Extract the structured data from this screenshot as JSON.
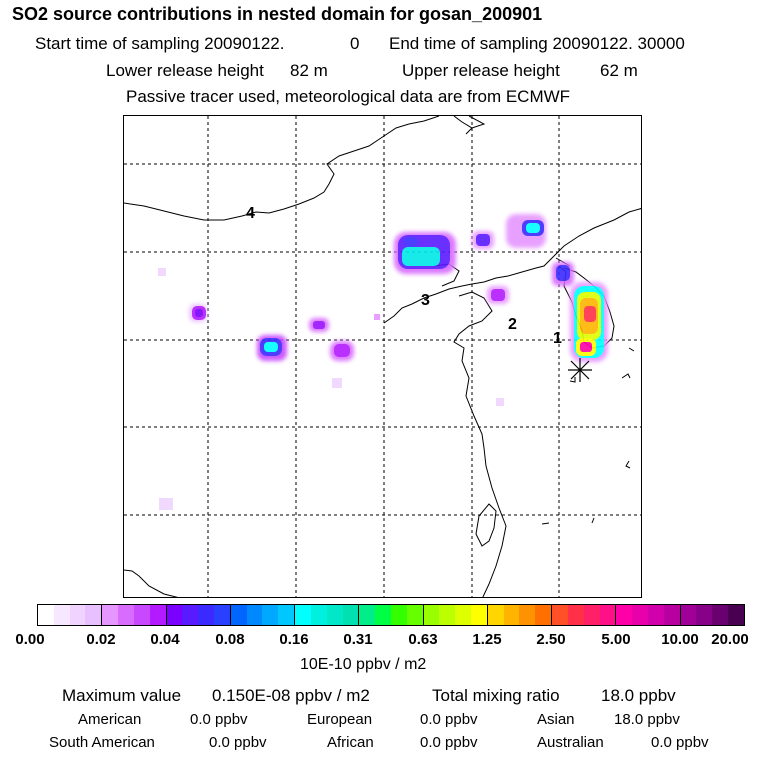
{
  "header": {
    "title": "SO2 source contributions in nested domain for gosan_200901",
    "start_label": "Start time of sampling 20090122.",
    "start_time": "0",
    "end_label": "End time of sampling 20090122. 30000",
    "lower_label": "Lower release height",
    "lower_value": "82 m",
    "upper_label": "Upper release height",
    "upper_value": "62 m",
    "info": "Passive tracer used, meteorological data are from ECMWF"
  },
  "map": {
    "markers": [
      {
        "label": "4"
      },
      {
        "label": "3"
      },
      {
        "label": "2"
      },
      {
        "label": "1"
      }
    ],
    "receptor_symbol": "star"
  },
  "legend": {
    "ticks": [
      "0.00",
      "0.02",
      "0.04",
      "0.08",
      "0.16",
      "0.31",
      "0.63",
      "1.25",
      "2.50",
      "5.00",
      "10.00",
      "20.00"
    ],
    "colors": [
      [
        "#ffffff",
        "#f8e8ff",
        "#f0d4ff",
        "#e8c0ff"
      ],
      [
        "#e596ff",
        "#d86cff",
        "#c848ff",
        "#b31aff"
      ],
      [
        "#7a00ff",
        "#5a1aff",
        "#3a2aff",
        "#2a40ff"
      ],
      [
        "#0066ff",
        "#0088ff",
        "#00a8ff",
        "#00c8ff"
      ],
      [
        "#00ffff",
        "#00f0e0",
        "#00e8c8",
        "#00e0b0"
      ],
      [
        "#00ee88",
        "#00ff44",
        "#33ff00",
        "#66ff00"
      ],
      [
        "#99ff00",
        "#bbff00",
        "#ddff00",
        "#ffff00"
      ],
      [
        "#ffd600",
        "#ffb400",
        "#ff9200",
        "#ff7000"
      ],
      [
        "#ff5028",
        "#ff3048",
        "#ff2068",
        "#ff1088"
      ],
      [
        "#ff00a8",
        "#e800aa",
        "#d000ac",
        "#b800a0"
      ],
      [
        "#a00098",
        "#860088",
        "#6a0070",
        "#4a0050"
      ]
    ],
    "units": "10E-10 ppbv / m2"
  },
  "stats": {
    "max_label": "Maximum value",
    "max_value": "0.150E-08 ppbv / m2",
    "total_label": "Total mixing ratio",
    "total_value": "18.0 ppbv"
  },
  "regions": [
    {
      "name": "American",
      "value": "0.0 ppbv"
    },
    {
      "name": "European",
      "value": "0.0 ppbv"
    },
    {
      "name": "Asian",
      "value": "18.0 ppbv"
    },
    {
      "name": "South American",
      "value": "0.0 ppbv"
    },
    {
      "name": "African",
      "value": "0.0 ppbv"
    },
    {
      "name": "Australian",
      "value": "0.0 ppbv"
    }
  ]
}
